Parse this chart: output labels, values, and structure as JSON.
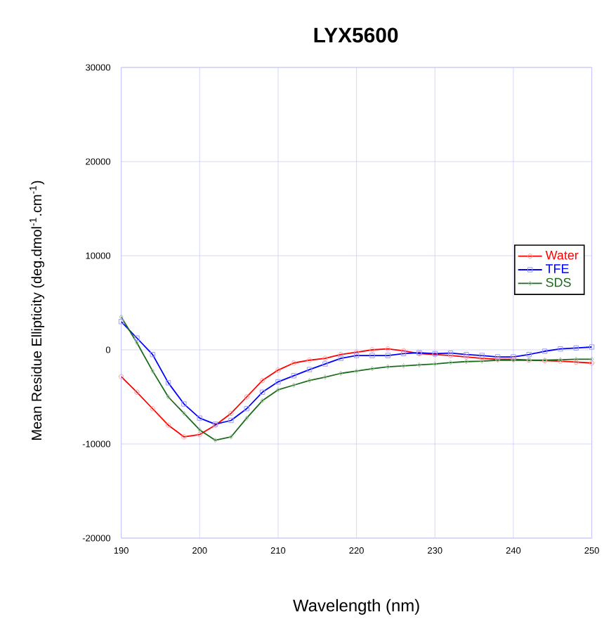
{
  "chart_data": {
    "type": "line",
    "title": "LYX5600",
    "xlabel": "Wavelength (nm)",
    "ylabel": "Mean Residue Ellipticity (deg.dmol$^{-1}$.cm$^{-1}$)",
    "x": [
      190,
      192,
      194,
      196,
      198,
      200,
      202,
      204,
      206,
      208,
      210,
      212,
      214,
      216,
      218,
      220,
      222,
      224,
      226,
      228,
      230,
      232,
      234,
      236,
      238,
      240,
      242,
      244,
      246,
      248,
      250
    ],
    "series": [
      {
        "name": "Water",
        "color": "#ff0000",
        "marker": "circle",
        "values": [
          -2850,
          -4500,
          -6250,
          -8000,
          -9250,
          -9000,
          -8000,
          -6750,
          -5000,
          -3250,
          -2150,
          -1400,
          -1100,
          -900,
          -500,
          -250,
          0,
          100,
          -100,
          -400,
          -500,
          -600,
          -750,
          -900,
          -1000,
          -1000,
          -1100,
          -1150,
          -1200,
          -1300,
          -1400
        ]
      },
      {
        "name": "TFE",
        "color": "#0000ff",
        "marker": "square",
        "values": [
          3000,
          1250,
          -500,
          -3500,
          -5750,
          -7250,
          -7900,
          -7500,
          -6250,
          -4500,
          -3400,
          -2750,
          -2100,
          -1500,
          -900,
          -600,
          -600,
          -600,
          -400,
          -300,
          -400,
          -350,
          -500,
          -600,
          -750,
          -750,
          -500,
          -150,
          100,
          200,
          300
        ]
      },
      {
        "name": "SDS",
        "color": "#1a6b1a",
        "marker": "diamond",
        "values": [
          3500,
          750,
          -2250,
          -5000,
          -6750,
          -8500,
          -9600,
          -9250,
          -7250,
          -5400,
          -4250,
          -3750,
          -3250,
          -2900,
          -2500,
          -2250,
          -2000,
          -1800,
          -1700,
          -1600,
          -1500,
          -1350,
          -1250,
          -1200,
          -1100,
          -1100,
          -1100,
          -1100,
          -1050,
          -1000,
          -1000
        ]
      }
    ],
    "xlim": [
      190,
      250
    ],
    "xticks": [
      190,
      200,
      210,
      220,
      230,
      240,
      250
    ],
    "ylim": [
      -20000,
      30000
    ],
    "yticks": [
      -20000,
      -10000,
      0,
      10000,
      20000,
      30000
    ],
    "grid": true,
    "legend": "right"
  }
}
